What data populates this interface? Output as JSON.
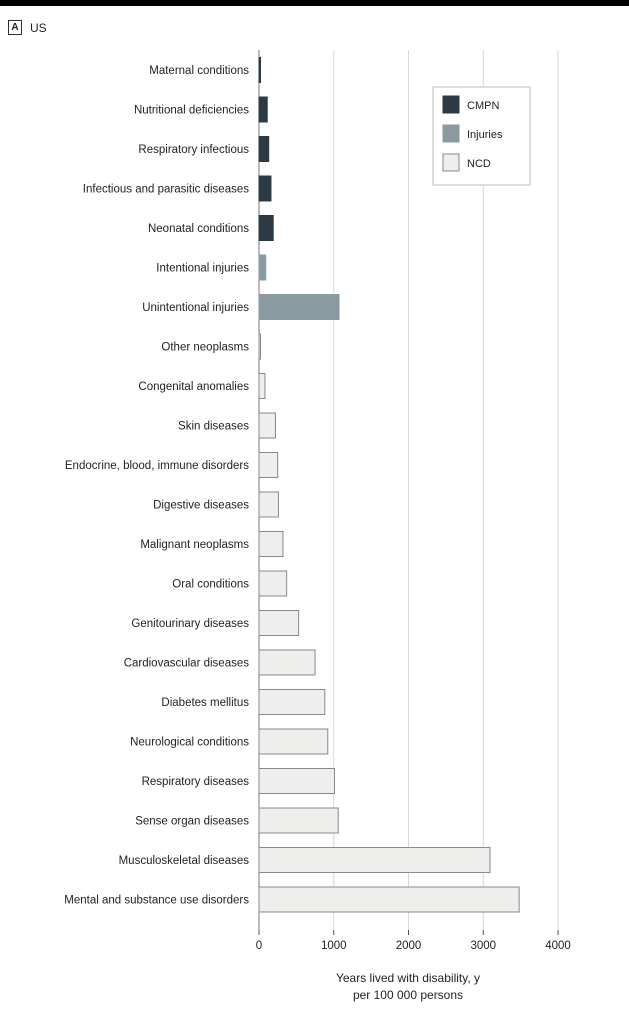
{
  "panel": {
    "letter": "A",
    "title": "US"
  },
  "colors": {
    "CMPN": "#2b3a45",
    "Injuries": "#8a9aa1",
    "NCD": "#eeeeec"
  },
  "chart_data": {
    "type": "bar",
    "orientation": "horizontal",
    "title": "",
    "xlabel_lines": [
      "Years lived with disability, y",
      "per 100 000 persons"
    ],
    "xlim": [
      0,
      4000
    ],
    "xticks": [
      0,
      1000,
      2000,
      3000,
      4000
    ],
    "xtick_labels": [
      "0",
      "1000",
      "2000",
      "3000",
      "4000"
    ],
    "grid": "vertical",
    "legend_position": "top-right",
    "legend": [
      "CMPN",
      "Injuries",
      "NCD"
    ],
    "categories": [
      "Maternal conditions",
      "Nutritional deficiencies",
      "Respiratory infectious",
      "Infectious and parasitic diseases",
      "Neonatal conditions",
      "Intentional injuries",
      "Unintentional injuries",
      "Other neoplasms",
      "Congenital anomalies",
      "Skin diseases",
      "Endocrine, blood, immune disorders",
      "Digestive diseases",
      "Malignant neoplasms",
      "Oral conditions",
      "Genitourinary diseases",
      "Cardiovascular diseases",
      "Diabetes mellitus",
      "Neurological conditions",
      "Respiratory diseases",
      "Sense organ diseases",
      "Musculoskeletal diseases",
      "Mental and substance use disorders"
    ],
    "values": [
      15,
      110,
      130,
      160,
      190,
      90,
      1070,
      20,
      80,
      220,
      250,
      260,
      320,
      370,
      530,
      750,
      880,
      920,
      1010,
      1060,
      3090,
      3480
    ],
    "groups": [
      "CMPN",
      "CMPN",
      "CMPN",
      "CMPN",
      "CMPN",
      "Injuries",
      "Injuries",
      "NCD",
      "NCD",
      "NCD",
      "NCD",
      "NCD",
      "NCD",
      "NCD",
      "NCD",
      "NCD",
      "NCD",
      "NCD",
      "NCD",
      "NCD",
      "NCD",
      "NCD"
    ]
  }
}
